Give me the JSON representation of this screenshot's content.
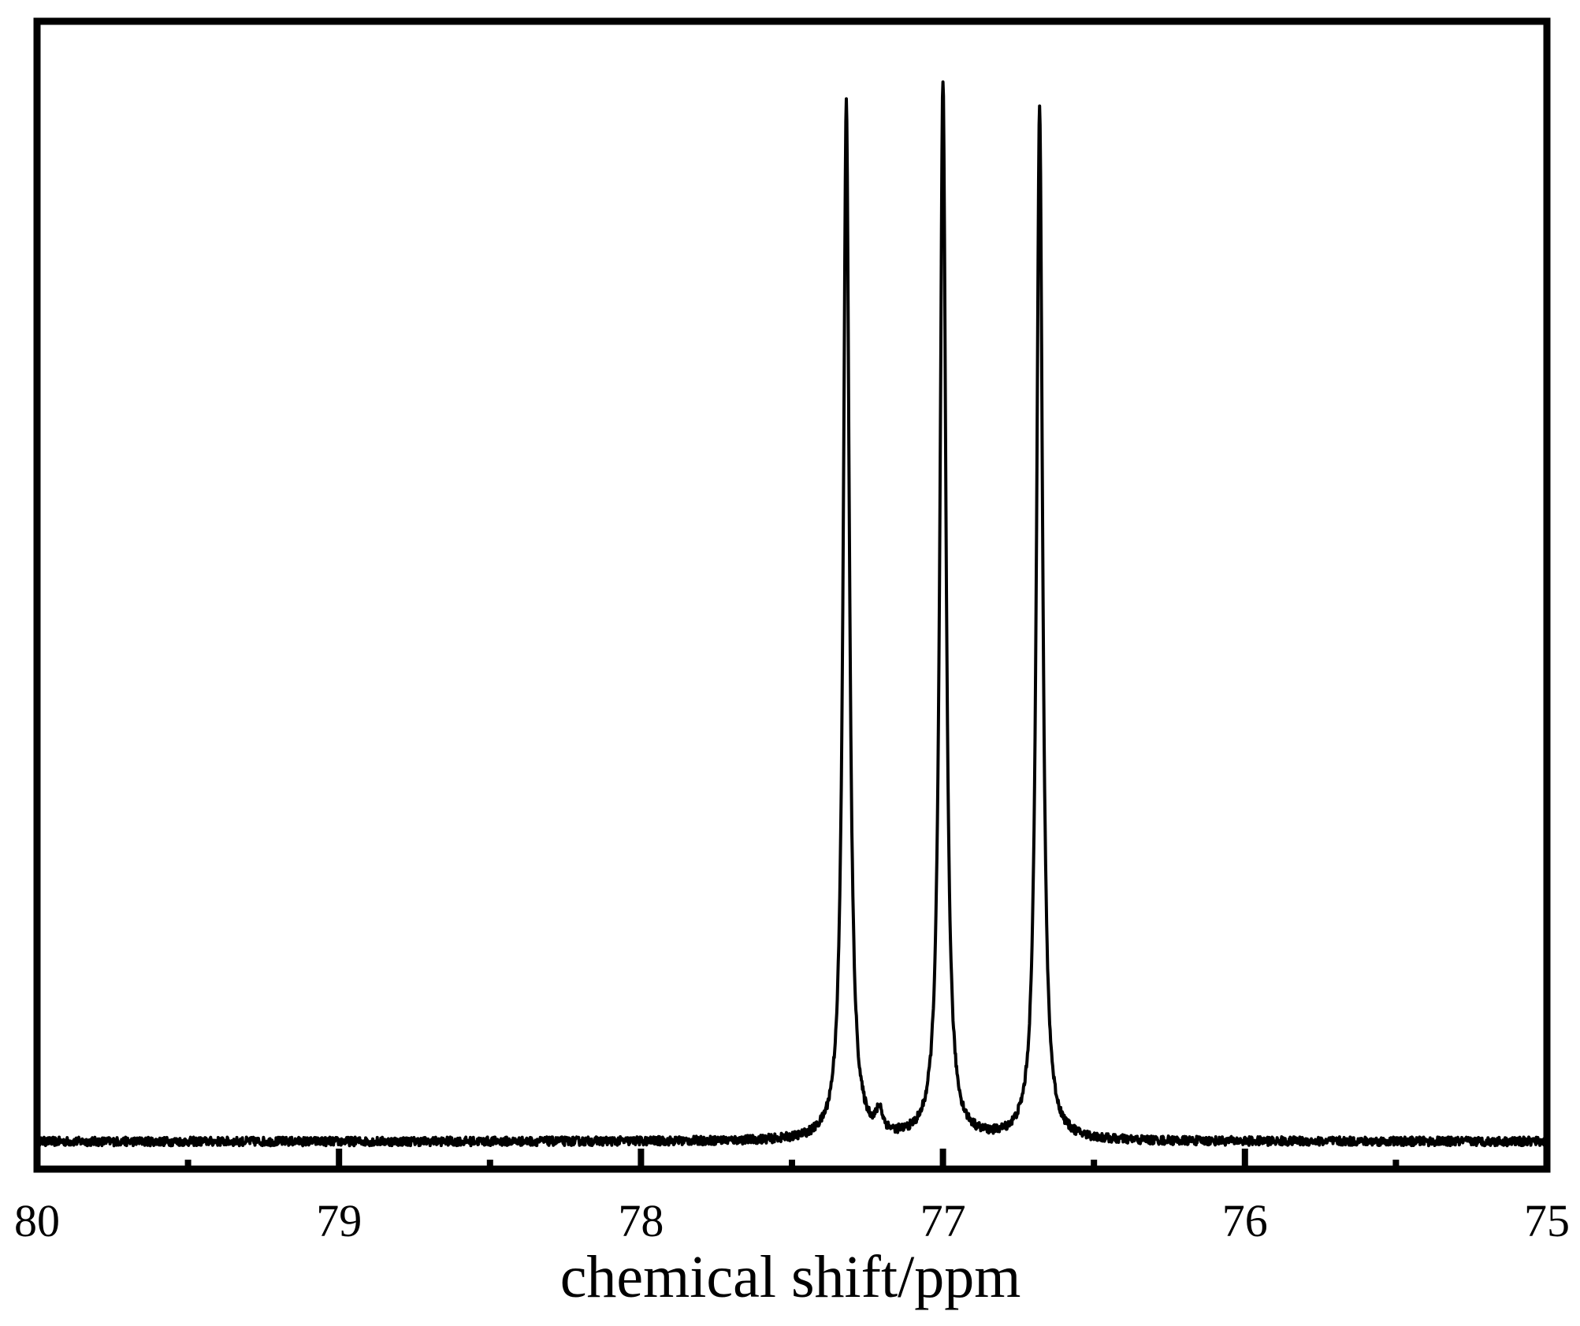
{
  "chart_data": {
    "type": "line",
    "xlabel": "chemical shift/ppm",
    "ylabel": "",
    "xlim": [
      80,
      75
    ],
    "x_reversed": true,
    "x_major_ticks": [
      80,
      79,
      78,
      77,
      76,
      75
    ],
    "x_tick_labels": [
      "80",
      "79",
      "78",
      "77",
      "76",
      "75"
    ],
    "x_minor_ticks": [
      79.5,
      78.5,
      77.5,
      76.5,
      75.5
    ],
    "ylim": [
      0,
      1.0
    ],
    "y_ticks_shown": false,
    "grid": false,
    "legend": "none",
    "series": [
      {
        "color": "#000000",
        "baseline": 0.0,
        "peaks": [
          {
            "x": 77.32,
            "y": 0.96
          },
          {
            "x": 77.21,
            "y": 0.02
          },
          {
            "x": 77.0,
            "y": 0.98
          },
          {
            "x": 76.68,
            "y": 0.96
          }
        ],
        "noise_amplitude": 0.004
      }
    ]
  }
}
